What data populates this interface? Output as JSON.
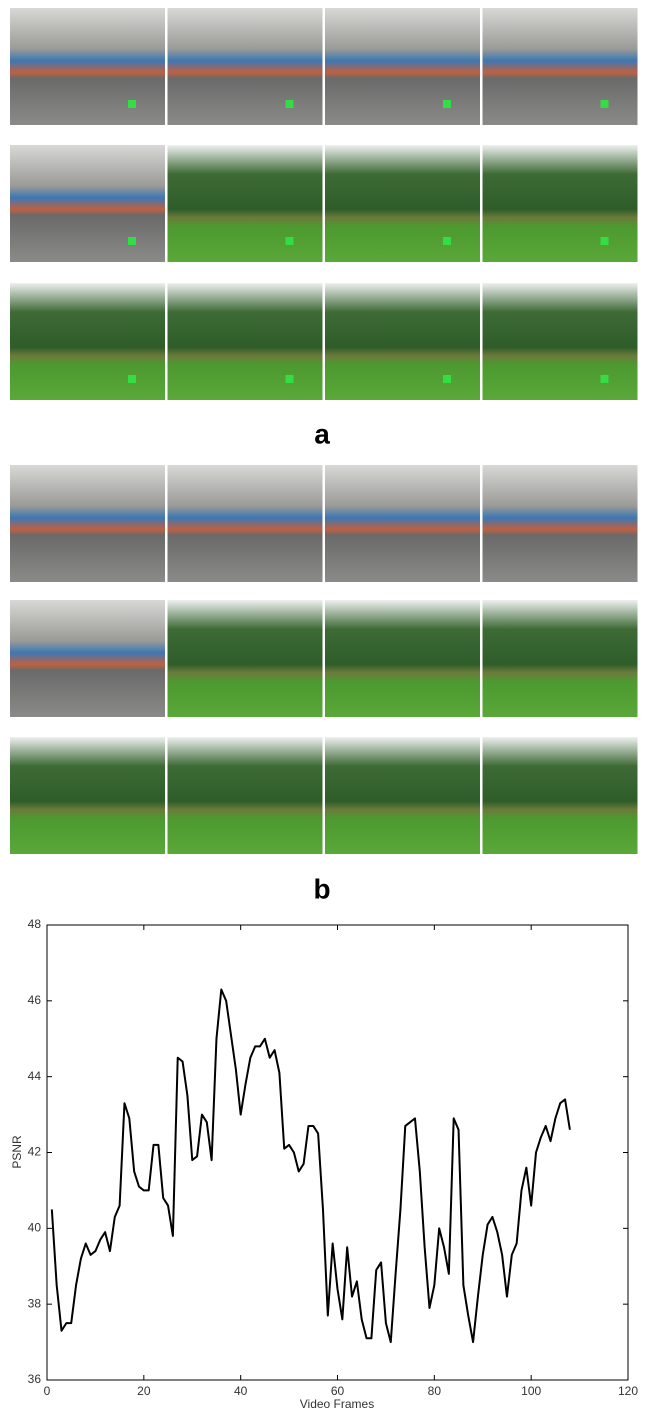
{
  "subfigure_labels": [
    "a",
    "b"
  ],
  "chart_data": {
    "type": "line",
    "x_label": "Video Frames",
    "y_label": "PSNR",
    "x": [
      1,
      2,
      3,
      4,
      5,
      6,
      7,
      8,
      9,
      10,
      11,
      12,
      13,
      14,
      15,
      16,
      17,
      18,
      19,
      20,
      21,
      22,
      23,
      24,
      25,
      26,
      27,
      28,
      29,
      30,
      31,
      32,
      33,
      34,
      35,
      36,
      37,
      38,
      39,
      40,
      41,
      42,
      43,
      44,
      45,
      46,
      47,
      48,
      49,
      50,
      51,
      52,
      53,
      54,
      55,
      56,
      57,
      58,
      59,
      60,
      61,
      62,
      63,
      64,
      65,
      66,
      67,
      68,
      69,
      70,
      71,
      72,
      73,
      74,
      75,
      76,
      77,
      78,
      79,
      80,
      81,
      82,
      83,
      84,
      85,
      86,
      87,
      88,
      89,
      90,
      91,
      92,
      93,
      94,
      95,
      96,
      97,
      98,
      99,
      100,
      101,
      102,
      103,
      104,
      105,
      106,
      107,
      108
    ],
    "values": [
      40.5,
      38.5,
      37.3,
      37.5,
      37.5,
      38.5,
      39.2,
      39.6,
      39.3,
      39.4,
      39.7,
      39.9,
      39.4,
      40.3,
      40.6,
      43.3,
      42.9,
      41.5,
      41.1,
      41.0,
      41.0,
      42.2,
      42.2,
      40.8,
      40.6,
      39.8,
      44.5,
      44.4,
      43.5,
      41.8,
      41.9,
      43.0,
      42.8,
      41.8,
      45.0,
      46.3,
      46.0,
      45.1,
      44.2,
      43.0,
      43.8,
      44.5,
      44.8,
      44.8,
      45.0,
      44.5,
      44.7,
      44.1,
      42.1,
      42.2,
      42.0,
      41.5,
      41.7,
      42.7,
      42.7,
      42.5,
      40.5,
      37.7,
      39.6,
      38.4,
      37.6,
      39.5,
      38.2,
      38.6,
      37.6,
      37.1,
      37.1,
      38.9,
      39.1,
      37.5,
      37.0,
      38.8,
      40.5,
      42.7,
      42.8,
      42.9,
      41.5,
      39.5,
      37.9,
      38.5,
      40.0,
      39.5,
      38.8,
      42.9,
      42.6,
      38.5,
      37.7,
      37.0,
      38.2,
      39.3,
      40.1,
      40.3,
      39.9,
      39.3,
      38.2,
      39.3,
      39.6,
      41.0,
      41.6,
      40.6,
      42.0,
      42.4,
      42.7,
      42.3,
      42.9,
      43.3,
      43.4,
      42.6
    ],
    "color": "#000000",
    "xlim": [
      0,
      120
    ],
    "xticks": [
      0,
      20,
      40,
      60,
      80,
      100,
      120
    ],
    "ylim": [
      36,
      48
    ],
    "yticks": [
      36,
      38,
      40,
      42,
      44,
      46,
      48
    ],
    "grid": false
  }
}
